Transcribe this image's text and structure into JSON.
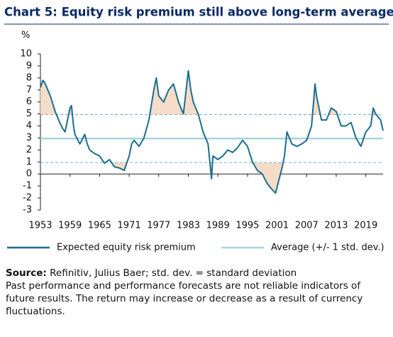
{
  "chart_data": {
    "type": "line",
    "title": "Chart 5: Equity risk premium still above long-term average",
    "y_unit": "%",
    "x": [
      1953,
      1953.5,
      1954,
      1955,
      1956,
      1957,
      1957.5,
      1958,
      1958.5,
      1959,
      1959.3,
      1959.7,
      1960,
      1961,
      1962,
      1962.5,
      1963,
      1964,
      1965,
      1966,
      1967,
      1968,
      1969,
      1970,
      1971,
      1971.5,
      1972,
      1973,
      1974,
      1975,
      1976,
      1976.5,
      1977,
      1978,
      1979,
      1980,
      1981,
      1982,
      1983,
      1983.5,
      1984,
      1985,
      1986,
      1987,
      1987.7,
      1988,
      1989,
      1990,
      1991,
      1992,
      1993,
      1994,
      1995,
      1996,
      1997,
      1998,
      1999,
      2000,
      2000.7,
      2001.3,
      2002,
      2002.5,
      2003,
      2003.5,
      2004,
      2005,
      2006,
      2007,
      2008,
      2008.7,
      2009,
      2010,
      2011,
      2012,
      2013,
      2014,
      2015,
      2016,
      2017,
      2018,
      2019,
      2020,
      2020.5,
      2021,
      2022,
      2022.5
    ],
    "series": [
      {
        "name": "Expected equity risk premium",
        "color": "#1a6e8e",
        "values": [
          7.2,
          7.8,
          7.5,
          6.5,
          5.2,
          4.2,
          3.8,
          3.5,
          4.5,
          5.5,
          5.7,
          4.0,
          3.3,
          2.5,
          3.3,
          2.5,
          2.0,
          1.7,
          1.5,
          0.9,
          1.2,
          0.6,
          0.5,
          0.3,
          1.5,
          2.5,
          2.8,
          2.3,
          3.0,
          4.5,
          7.0,
          8.0,
          6.5,
          6.0,
          7.0,
          7.5,
          6.0,
          5.0,
          8.6,
          7.0,
          6.0,
          5.0,
          3.5,
          2.5,
          -0.4,
          1.5,
          1.2,
          1.5,
          2.0,
          1.8,
          2.2,
          2.8,
          2.3,
          1.0,
          0.3,
          0.0,
          -0.8,
          -1.3,
          -1.6,
          -0.6,
          0.5,
          1.5,
          3.5,
          3.0,
          2.5,
          2.3,
          2.5,
          2.8,
          4.0,
          7.5,
          6.5,
          4.5,
          4.5,
          5.5,
          5.2,
          4.0,
          4.0,
          4.3,
          3.0,
          2.3,
          3.5,
          4.0,
          5.5,
          5.0,
          4.5,
          3.6
        ]
      }
    ],
    "reference_lines": {
      "name": "Average (+/- 1 std. dev.)",
      "color": "#a8d5dc",
      "band_color": "#6fb0d6",
      "fill_color": "#f5dcc8",
      "average": 2.95,
      "upper": 4.95,
      "lower": 0.95
    },
    "xlim": [
      1953,
      2022.5
    ],
    "xticks": [
      1953,
      1959,
      1965,
      1971,
      1977,
      1983,
      1989,
      1995,
      2001,
      2007,
      2013,
      2019
    ],
    "ylim": [
      -3,
      10
    ],
    "yticks": [
      -3,
      -2,
      -1,
      0,
      1,
      2,
      3,
      4,
      5,
      6,
      7,
      8,
      9,
      10
    ]
  },
  "footer": {
    "source_label": "Source:",
    "source_text": "Refinitiv, Julius Baer; std. dev. = standard deviation",
    "disclaimer": "Past performance and performance forecasts are not reliable indicators of future results. The return may increase or decrease as a result of currency fluctuations."
  }
}
